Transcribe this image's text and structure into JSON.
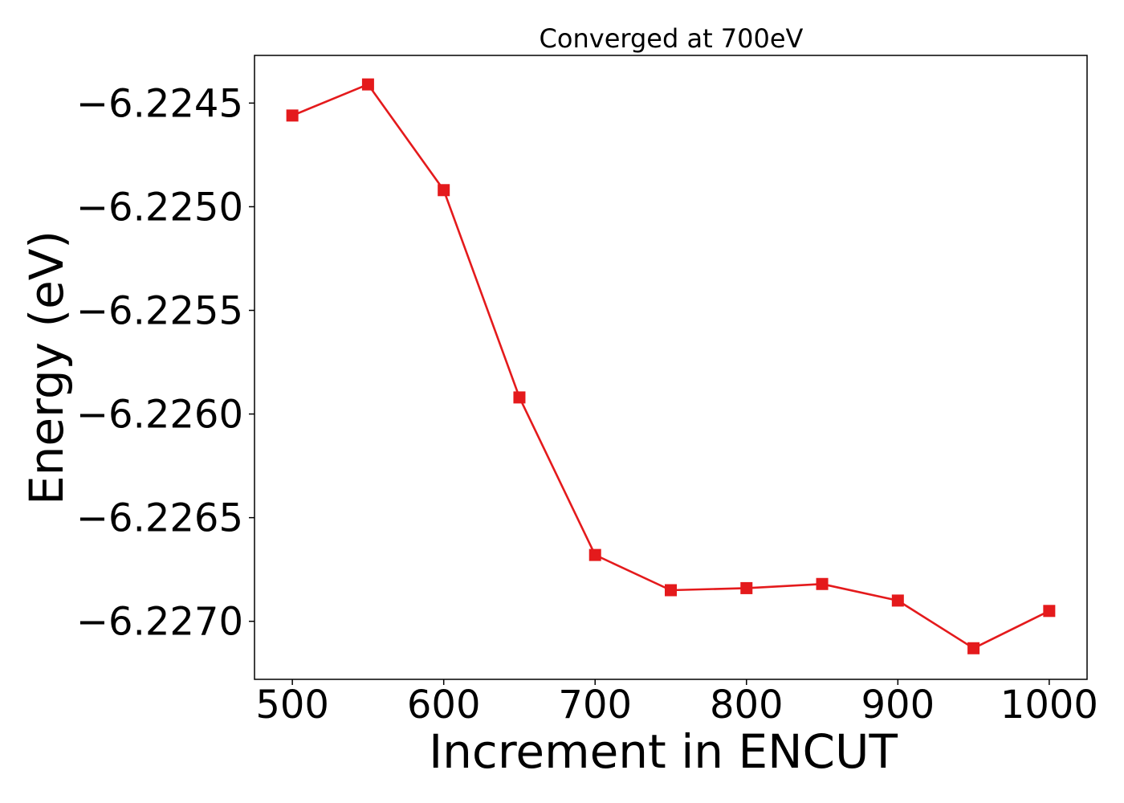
{
  "chart_data": {
    "type": "line",
    "title": "Converged at 700eV",
    "xlabel": "Increment in ENCUT",
    "ylabel": "Energy (eV)",
    "xlim": [
      475,
      1025
    ],
    "ylim": [
      -6.22728,
      -6.22427
    ],
    "xticks": [
      500,
      600,
      700,
      800,
      900,
      1000
    ],
    "xtick_labels": [
      "500",
      "600",
      "700",
      "800",
      "900",
      "1000"
    ],
    "yticks": [
      -6.2245,
      -6.225,
      -6.2255,
      -6.226,
      -6.2265,
      -6.227
    ],
    "ytick_labels": [
      "−6.2245",
      "−6.2250",
      "−6.2255",
      "−6.2260",
      "−6.2265",
      "−6.2270"
    ],
    "grid": false,
    "marker": "square",
    "color": "#e41a1c",
    "series": [
      {
        "x": [
          500,
          550,
          600,
          650,
          700,
          750,
          800,
          850,
          900,
          950,
          1000
        ],
        "y": [
          -6.22456,
          -6.22441,
          -6.22492,
          -6.22592,
          -6.22668,
          -6.22685,
          -6.22684,
          -6.22682,
          -6.2269,
          -6.22713,
          -6.22695
        ]
      }
    ]
  }
}
